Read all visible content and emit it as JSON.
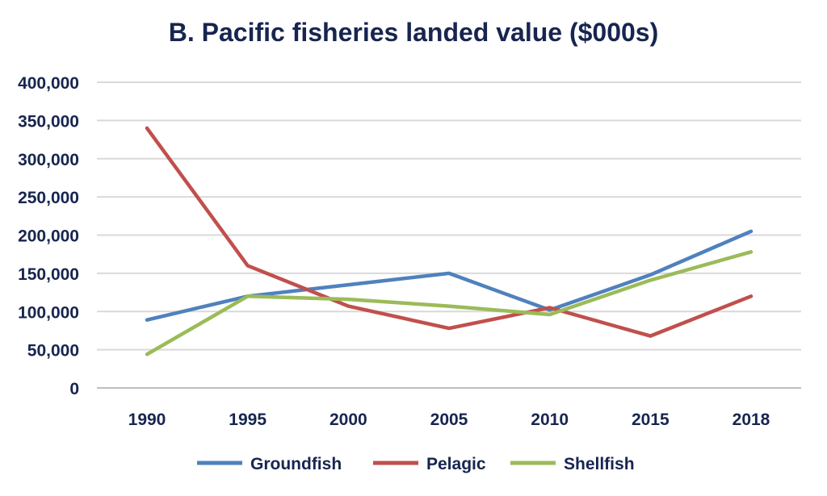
{
  "chart_data": {
    "type": "line",
    "title": "B. Pacific fisheries landed value ($000s)",
    "xlabel": "",
    "ylabel": "",
    "categories": [
      "1990",
      "1995",
      "2000",
      "2005",
      "2010",
      "2015",
      "2018"
    ],
    "y_ticks": [
      "0",
      "50,000",
      "100,000",
      "150,000",
      "200,000",
      "250,000",
      "300,000",
      "350,000",
      "400,000"
    ],
    "ylim": [
      0,
      400000
    ],
    "grid": true,
    "legend_position": "bottom",
    "series": [
      {
        "name": "Groundfish",
        "color": "#4f81bd",
        "values": [
          89000,
          120000,
          135000,
          150000,
          102000,
          148000,
          205000
        ]
      },
      {
        "name": "Pelagic",
        "color": "#c0504d",
        "values": [
          340000,
          160000,
          107000,
          78000,
          105000,
          68000,
          120000
        ]
      },
      {
        "name": "Shellfish",
        "color": "#9bbb59",
        "values": [
          44000,
          120000,
          116000,
          107000,
          96000,
          141000,
          178000
        ]
      }
    ]
  }
}
